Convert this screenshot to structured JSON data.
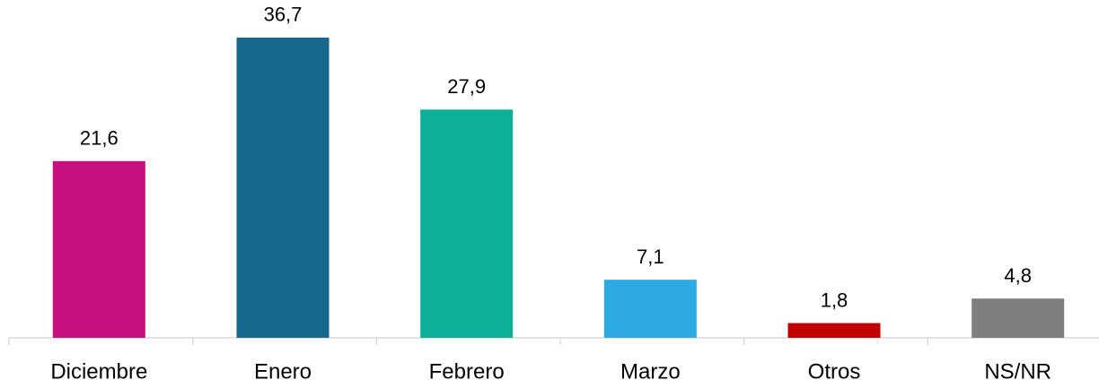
{
  "chart_data": {
    "type": "bar",
    "categories": [
      "Diciembre",
      "Enero",
      "Febrero",
      "Marzo",
      "Otros",
      "NS/NR"
    ],
    "values": [
      21.6,
      36.7,
      27.9,
      7.1,
      1.8,
      4.8
    ],
    "value_labels": [
      "21,6",
      "36,7",
      "27,9",
      "7,1",
      "1,8",
      "4,8"
    ],
    "colors": [
      "#C80F7E",
      "#17688C",
      "#0FAE96",
      "#2DAAE1",
      "#C00000",
      "#7F7F7F"
    ]
  }
}
